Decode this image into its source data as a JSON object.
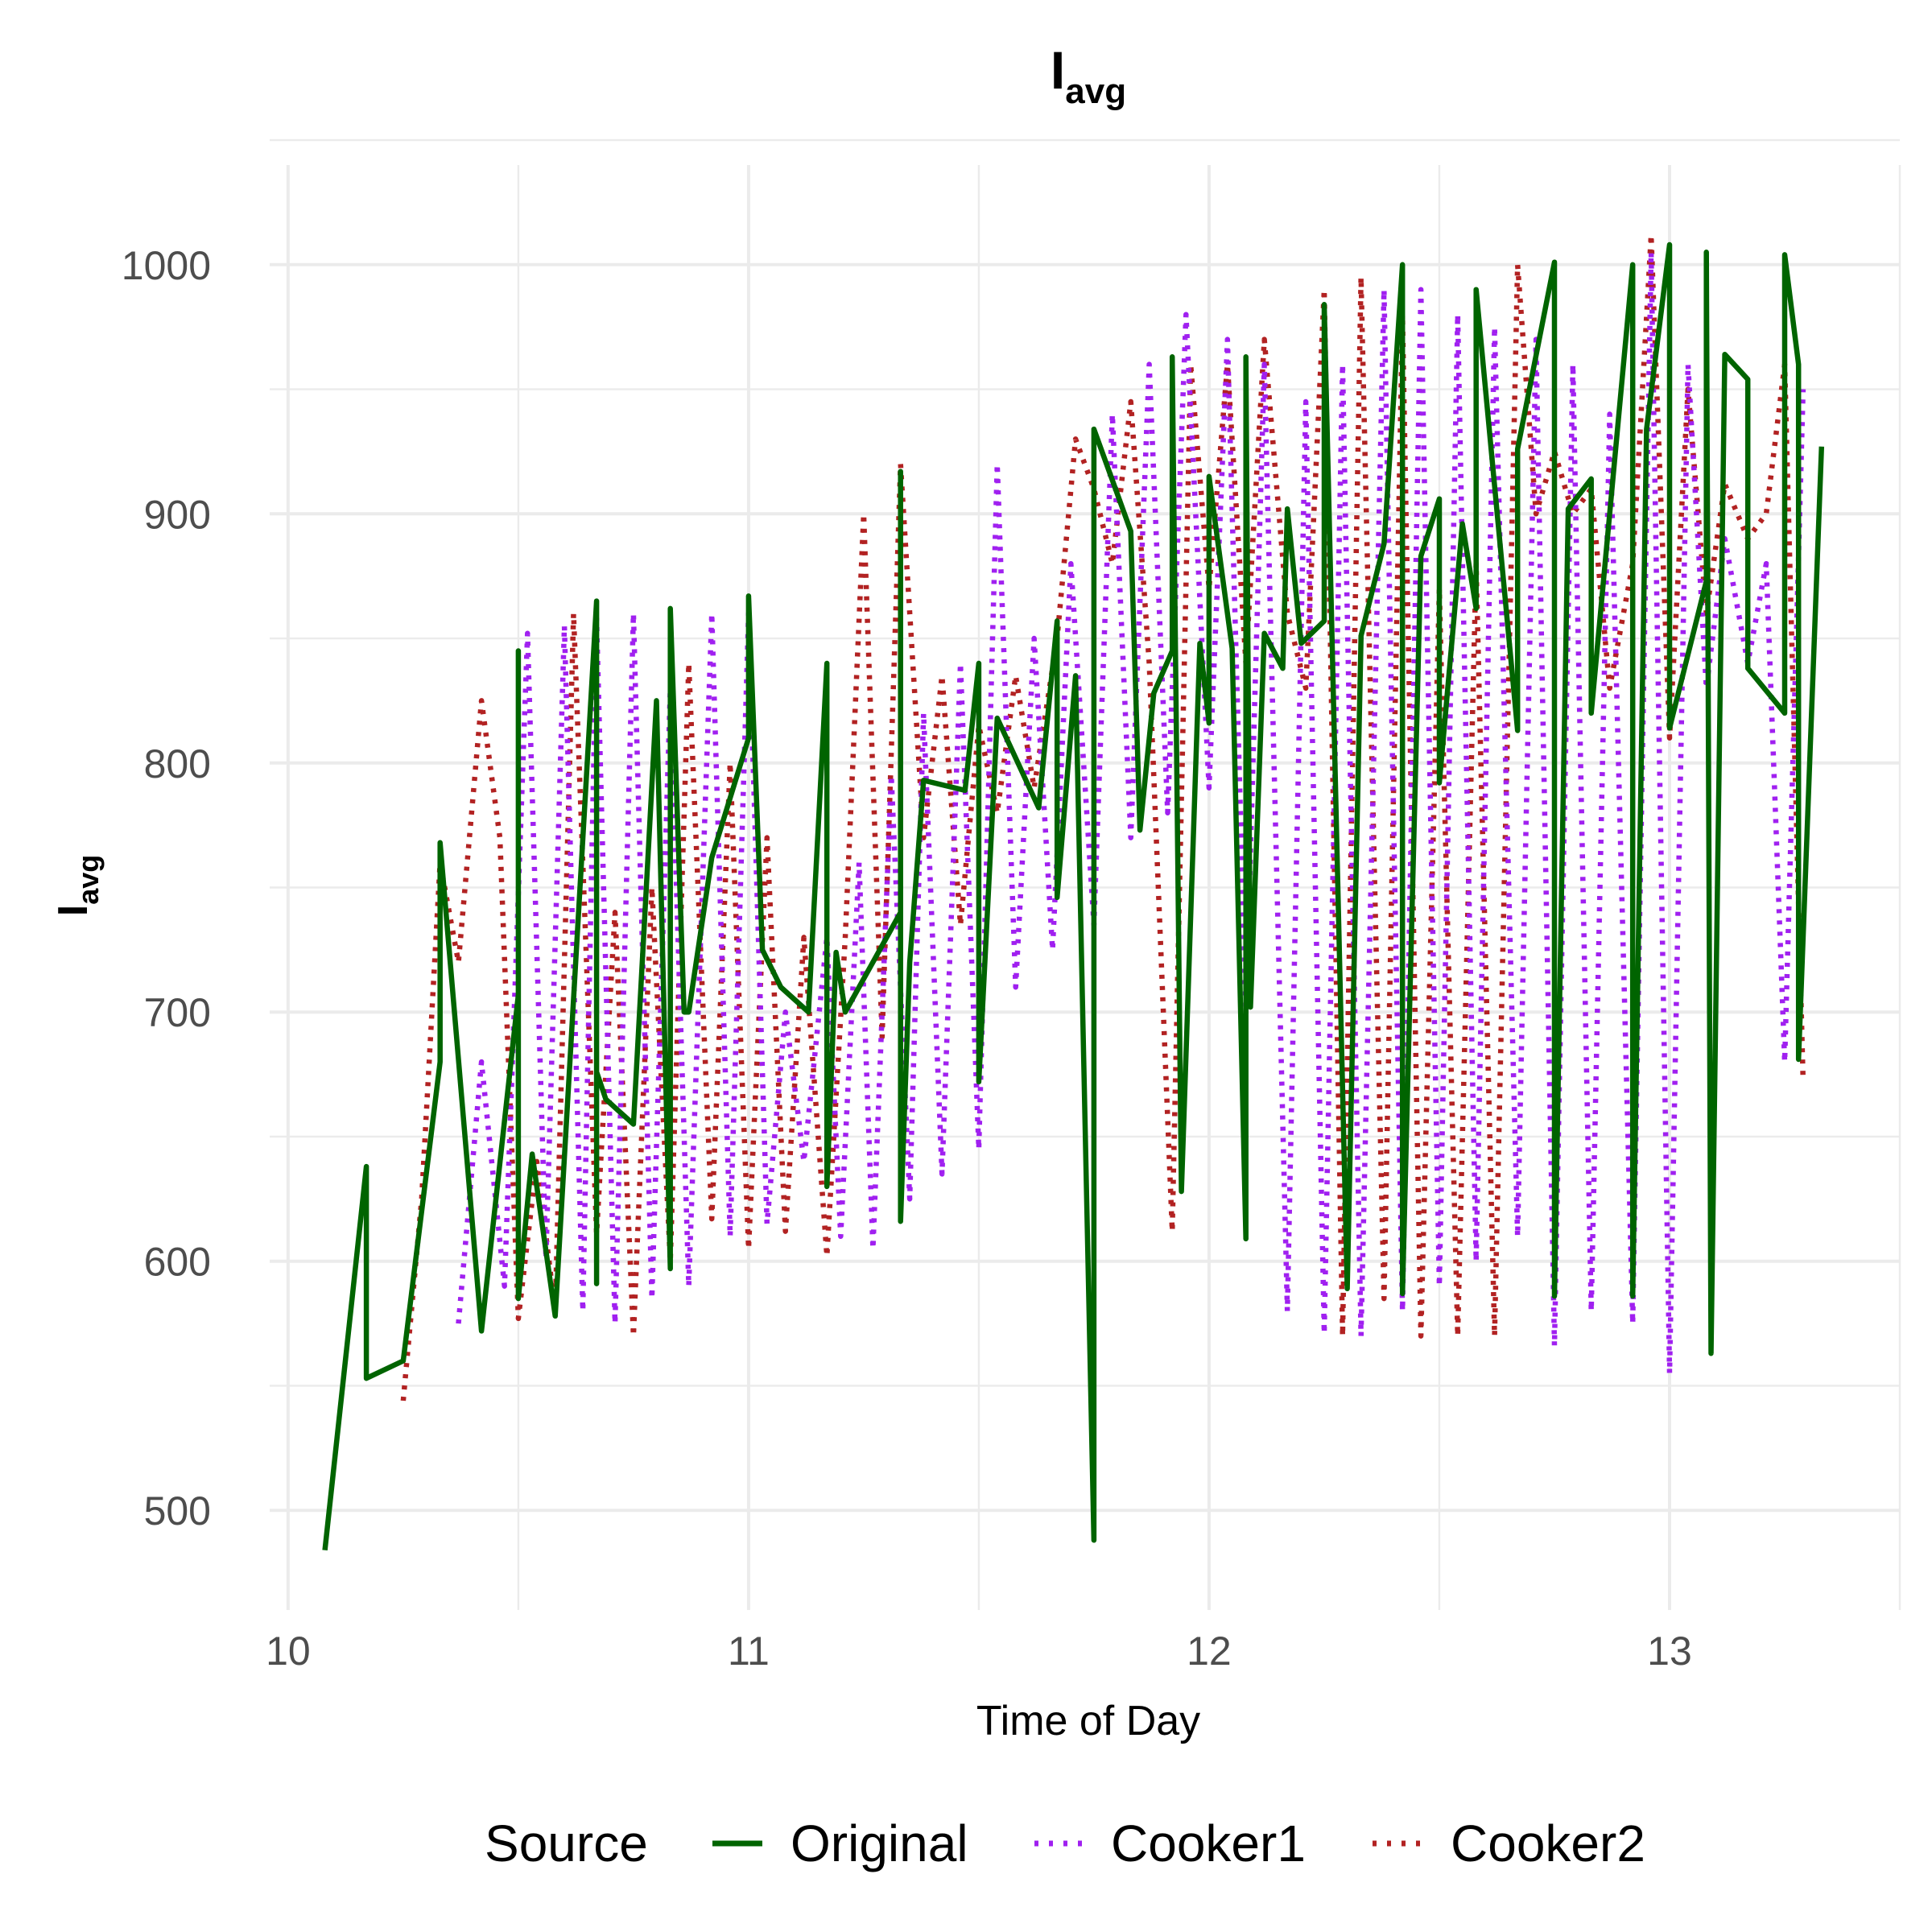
{
  "chart_data": {
    "type": "line",
    "title": "I",
    "title_sub": "avg",
    "xlabel": "Time of Day",
    "ylabel": "I",
    "ylabel_sub": "avg",
    "xlim": [
      9.96,
      13.5
    ],
    "ylim": [
      460,
      1040
    ],
    "xticks": [
      10,
      11,
      12,
      13
    ],
    "x_tick_labels": [
      "10",
      "11",
      "12",
      "13"
    ],
    "yticks": [
      500,
      600,
      700,
      800,
      900,
      1000
    ],
    "y_tick_labels": [
      "500",
      "600",
      "700",
      "800",
      "900",
      "1000"
    ],
    "grid": true,
    "legend_title": "Source",
    "legend_position": "bottom",
    "series": [
      {
        "name": "Original",
        "color": "#006400",
        "dash": "solid",
        "x": [
          10.08,
          10.17,
          10.17,
          10.25,
          10.33,
          10.33,
          10.42,
          10.5,
          10.5,
          10.5,
          10.53,
          10.58,
          10.67,
          10.67,
          10.67,
          10.69,
          10.75,
          10.8,
          10.83,
          10.83,
          10.86,
          10.87,
          10.92,
          11.0,
          11.0,
          11.03,
          11.07,
          11.13,
          11.17,
          11.17,
          11.19,
          11.21,
          11.33,
          11.33,
          11.33,
          11.35,
          11.38,
          11.47,
          11.5,
          11.5,
          11.54,
          11.63,
          11.67,
          11.67,
          11.71,
          11.75,
          11.75,
          11.83,
          11.85,
          11.88,
          11.92,
          11.92,
          11.94,
          11.98,
          12.0,
          12.0,
          12.05,
          12.08,
          12.08,
          12.09,
          12.12,
          12.16,
          12.17,
          12.2,
          12.25,
          12.25,
          12.3,
          12.33,
          12.33,
          12.38,
          12.42,
          12.42,
          12.46,
          12.5,
          12.5,
          12.55,
          12.58,
          12.58,
          12.67,
          12.67,
          12.75,
          12.75,
          12.78,
          12.83,
          12.83,
          12.92,
          12.92,
          12.95,
          13.0,
          13.0,
          13.08,
          13.08,
          13.09,
          13.12,
          13.17,
          13.17,
          13.25,
          13.25,
          13.28,
          13.28,
          13.33
        ],
        "y": [
          484,
          638,
          553,
          560,
          680,
          768,
          572,
          707,
          845,
          585,
          643,
          578,
          865,
          591,
          676,
          665,
          655,
          825,
          597,
          862,
          700,
          700,
          762,
          810,
          867,
          725,
          710,
          700,
          840,
          630,
          724,
          700,
          740,
          917,
          616,
          720,
          793,
          789,
          840,
          672,
          818,
          782,
          857,
          746,
          835,
          488,
          934,
          893,
          773,
          828,
          845,
          963,
          628,
          848,
          816,
          915,
          846,
          609,
          963,
          702,
          852,
          838,
          902,
          848,
          857,
          984,
          589,
          850,
          851,
          888,
          1000,
          587,
          883,
          906,
          792,
          896,
          862,
          990,
          813,
          926,
          1001,
          586,
          902,
          914,
          820,
          1000,
          586,
          934,
          1008,
          814,
          873,
          1005,
          563,
          964,
          954,
          838,
          820,
          1004,
          960,
          681,
          927
        ]
      },
      {
        "name": "Cooker1",
        "color": "#a020f0",
        "dash": "dotted",
        "x": [
          10.37,
          10.42,
          10.47,
          10.52,
          10.56,
          10.6,
          10.64,
          10.67,
          10.71,
          10.75,
          10.79,
          10.83,
          10.87,
          10.92,
          10.96,
          11.0,
          11.04,
          11.08,
          11.12,
          11.17,
          11.2,
          11.24,
          11.27,
          11.31,
          11.35,
          11.38,
          11.42,
          11.46,
          11.5,
          11.54,
          11.58,
          11.62,
          11.66,
          11.7,
          11.75,
          11.79,
          11.83,
          11.87,
          11.91,
          11.95,
          12.0,
          12.04,
          12.08,
          12.12,
          12.17,
          12.21,
          12.25,
          12.29,
          12.33,
          12.38,
          12.42,
          12.46,
          12.5,
          12.54,
          12.58,
          12.62,
          12.67,
          12.71,
          12.75,
          12.79,
          12.83,
          12.87,
          12.92,
          12.96,
          13.0,
          13.04,
          13.08,
          13.12,
          13.17,
          13.21,
          13.25,
          13.29
        ],
        "y": [
          575,
          680,
          590,
          852,
          601,
          855,
          580,
          858,
          575,
          860,
          585,
          830,
          590,
          860,
          610,
          860,
          615,
          700,
          640,
          730,
          610,
          760,
          605,
          795,
          625,
          820,
          635,
          840,
          645,
          920,
          710,
          850,
          725,
          880,
          735,
          940,
          770,
          960,
          780,
          980,
          790,
          970,
          700,
          960,
          580,
          945,
          571,
          960,
          570,
          990,
          580,
          990,
          590,
          980,
          600,
          975,
          610,
          970,
          566,
          960,
          580,
          940,
          575,
          1005,
          555,
          960,
          830,
          890,
          840,
          880,
          680,
          950
        ]
      },
      {
        "name": "Cooker2",
        "color": "#b22222",
        "dash": "dotted",
        "x": [
          10.25,
          10.29,
          10.33,
          10.37,
          10.42,
          10.46,
          10.5,
          10.54,
          10.58,
          10.62,
          10.67,
          10.71,
          10.75,
          10.79,
          10.83,
          10.87,
          10.92,
          10.96,
          11.0,
          11.04,
          11.08,
          11.12,
          11.17,
          11.21,
          11.25,
          11.29,
          11.33,
          11.38,
          11.42,
          11.46,
          11.5,
          11.54,
          11.58,
          11.62,
          11.67,
          11.71,
          11.75,
          11.79,
          11.83,
          11.87,
          11.92,
          11.96,
          12.0,
          12.04,
          12.08,
          12.12,
          12.17,
          12.21,
          12.25,
          12.29,
          12.33,
          12.38,
          12.42,
          12.46,
          12.5,
          12.54,
          12.58,
          12.62,
          12.67,
          12.71,
          12.75,
          12.79,
          12.83,
          12.87,
          12.92,
          12.96,
          13.0,
          13.04,
          13.08,
          13.12,
          13.17,
          13.21,
          13.25,
          13.29
        ],
        "y": [
          544,
          625,
          760,
          720,
          825,
          770,
          577,
          640,
          580,
          860,
          611,
          740,
          570,
          750,
          600,
          840,
          617,
          800,
          605,
          770,
          612,
          730,
          602,
          730,
          900,
          690,
          920,
          770,
          835,
          735,
          815,
          780,
          835,
          790,
          850,
          930,
          910,
          880,
          945,
          840,
          612,
          960,
          870,
          960,
          840,
          970,
          860,
          830,
          990,
          570,
          995,
          585,
          980,
          570,
          870,
          570,
          880,
          570,
          1000,
          900,
          925,
          900,
          910,
          830,
          880,
          1012,
          810,
          950,
          860,
          912,
          890,
          900,
          960,
          672
        ]
      }
    ]
  }
}
